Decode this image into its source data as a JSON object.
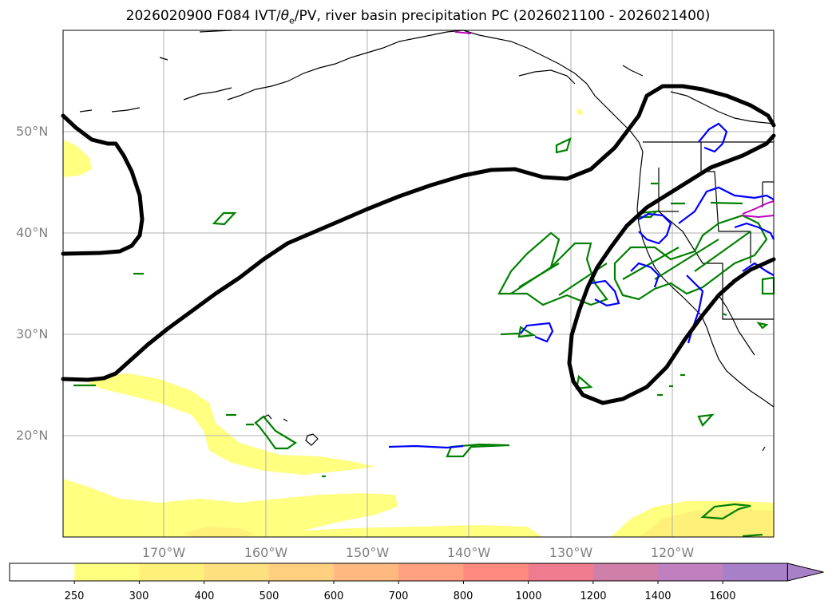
{
  "title": {
    "prefix": "2026020900 F084 IVT/",
    "theta": "θ",
    "theta_sub": "e",
    "suffix": "/PV, river basin precipitation PC (2026021100 - 2026021400)"
  },
  "map": {
    "lat_labels": [
      "50°N",
      "40°N",
      "30°N",
      "20°N"
    ],
    "lon_labels": [
      "170°W",
      "160°W",
      "150°W",
      "140°W",
      "130°W",
      "120°W"
    ],
    "lat_values": [
      50,
      40,
      30,
      20
    ],
    "lon_values": [
      -170,
      -160,
      -150,
      -140,
      -130,
      -120
    ],
    "extent": {
      "lon_min": -180,
      "lon_max": -110,
      "lat_min": 10,
      "lat_max": 60
    }
  },
  "colorbar": {
    "labels": [
      "250",
      "300",
      "400",
      "500",
      "600",
      "700",
      "800",
      "1000",
      "1200",
      "1400",
      "1600"
    ],
    "colors": [
      "#ffffff",
      "#ffff80",
      "#fff07a",
      "#ffe080",
      "#ffd080",
      "#ffb880",
      "#ffa080",
      "#ff8a80",
      "#f07a8e",
      "#d080a8",
      "#c080c0",
      "#a880c8"
    ],
    "extend_color": "#a880c8"
  },
  "colors": {
    "pv_contour": "#000000",
    "precip_green": "#008000",
    "theta_blue": "#0000ff",
    "ivt_magenta": "#c000c0",
    "ivt_low": "#ffff80",
    "grid": "#b0b0b0"
  }
}
